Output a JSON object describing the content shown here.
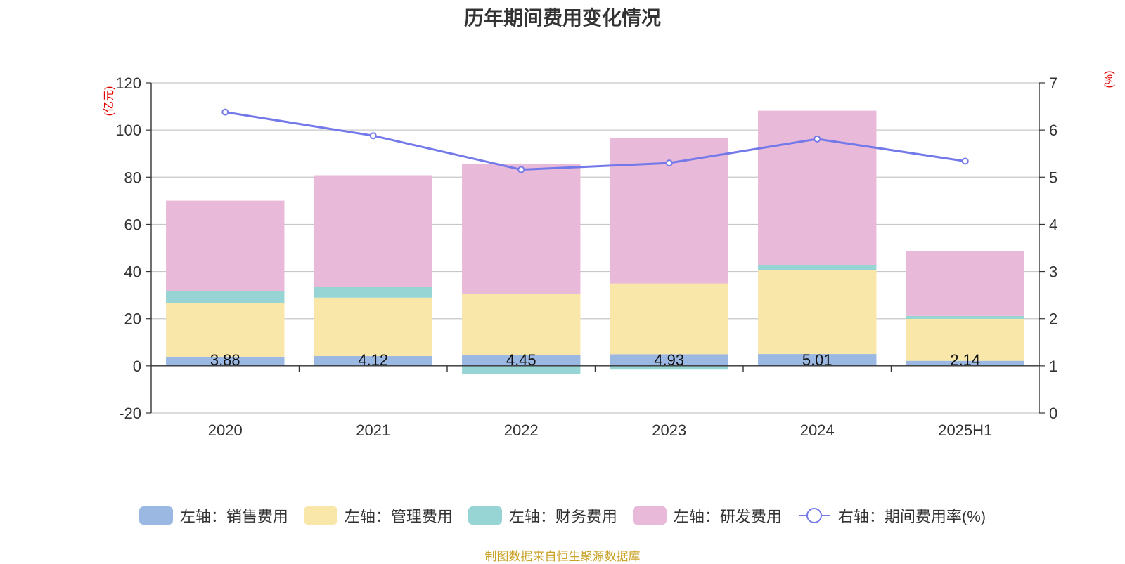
{
  "title": "历年期间费用变化情况",
  "source_note": "制图数据来自恒生聚源数据库",
  "chart_data": {
    "type": "bar",
    "stacked": true,
    "categories": [
      "2020",
      "2021",
      "2022",
      "2023",
      "2024",
      "2025H1"
    ],
    "series": [
      {
        "name": "左轴：销售费用",
        "axis": "left",
        "type": "bar",
        "color": "#9bb8e3",
        "values": [
          3.88,
          4.12,
          4.45,
          4.93,
          5.01,
          2.14
        ],
        "labels": [
          "3.88",
          "4.12",
          "4.45",
          "4.93",
          "5.01",
          "2.14"
        ]
      },
      {
        "name": "左轴：管理费用",
        "axis": "left",
        "type": "bar",
        "color": "#f8e7a9",
        "values": [
          22.7,
          24.8,
          26.2,
          30.0,
          35.5,
          17.8
        ]
      },
      {
        "name": "左轴：财务费用",
        "axis": "left",
        "type": "bar",
        "color": "#97d4d4",
        "values": [
          5.2,
          4.6,
          -3.6,
          -1.6,
          2.2,
          1.2
        ]
      },
      {
        "name": "左轴：研发费用",
        "axis": "left",
        "type": "bar",
        "color": "#e8b9d9",
        "values": [
          38.3,
          47.3,
          54.8,
          61.6,
          65.5,
          27.6
        ]
      },
      {
        "name": "右轴：期间费用率(%)",
        "axis": "right",
        "type": "line",
        "color": "#7479ea",
        "values": [
          6.38,
          5.88,
          5.16,
          5.3,
          5.81,
          5.34
        ]
      }
    ],
    "y_left": {
      "unit": "(亿元)",
      "ylim": [
        -20,
        120
      ],
      "ticks": [
        -20,
        0,
        20,
        40,
        60,
        80,
        100,
        120
      ]
    },
    "y_right": {
      "unit": "(%)",
      "ylim": [
        0,
        7
      ],
      "ticks": [
        0,
        1,
        2,
        3,
        4,
        5,
        6,
        7
      ]
    },
    "grid": true,
    "legend_position": "bottom"
  }
}
